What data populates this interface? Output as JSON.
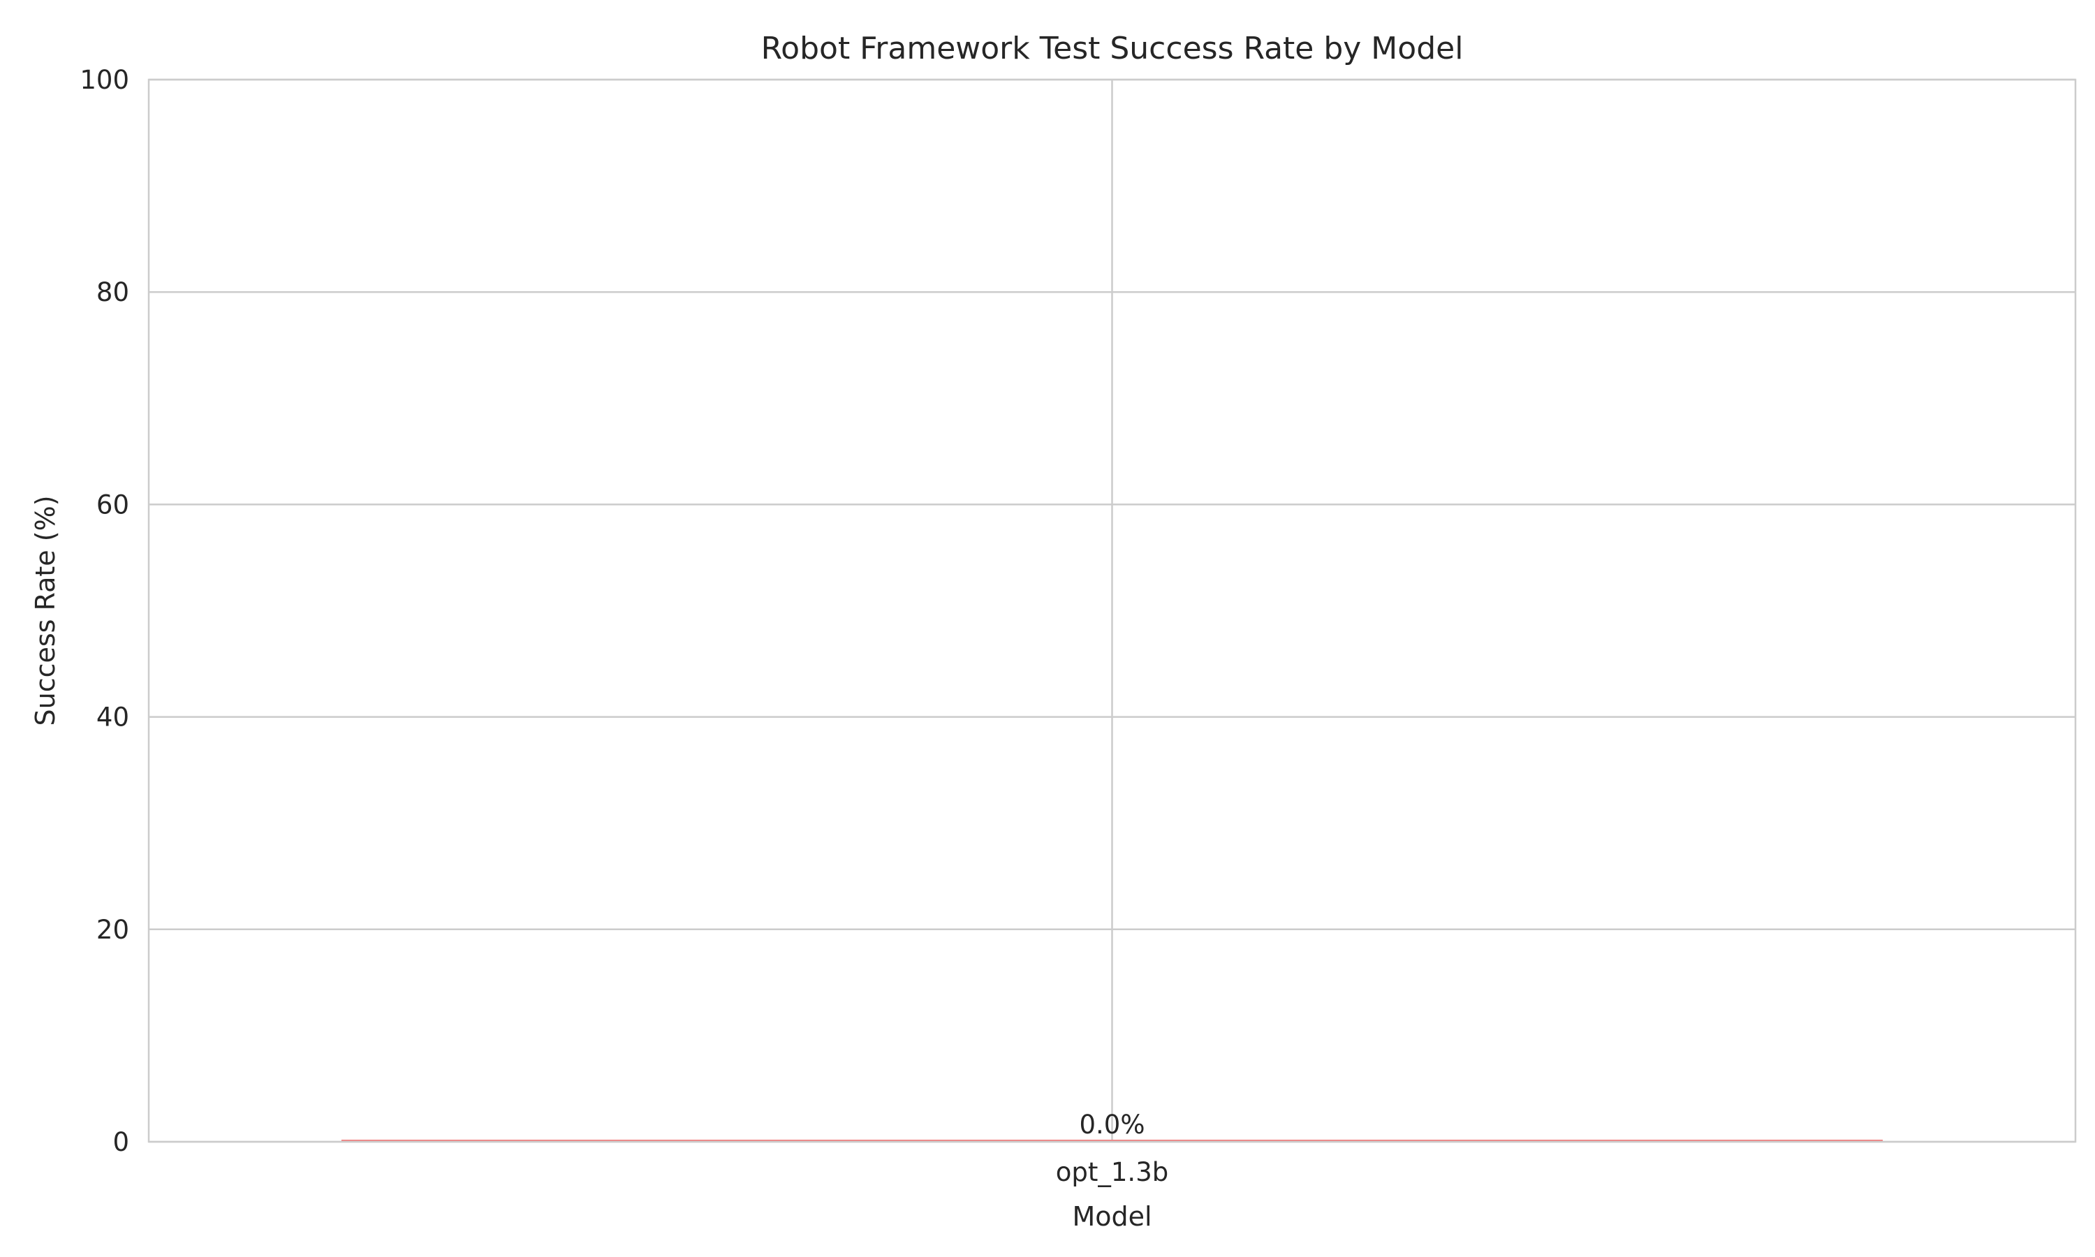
{
  "chart_data": {
    "type": "bar",
    "title": "Robot Framework Test Success Rate by Model",
    "xlabel": "Model",
    "ylabel": "Success Rate (%)",
    "categories": [
      "opt_1.3b"
    ],
    "values": [
      0.0
    ],
    "value_labels": [
      "0.0%"
    ],
    "ylim": [
      0,
      100
    ],
    "yticks": [
      0,
      20,
      40,
      60,
      80,
      100
    ],
    "grid": true,
    "legend": "none",
    "colors": {
      "bar": "#f08080",
      "grid": "#cccccc",
      "spine": "#cccccc",
      "text": "#262626"
    }
  }
}
